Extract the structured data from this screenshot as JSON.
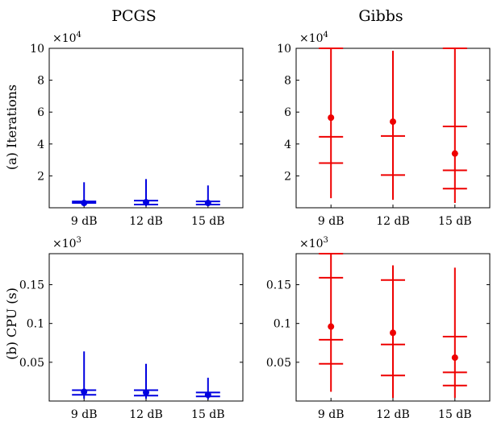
{
  "column_titles": [
    "PCGS",
    "Gibbs"
  ],
  "row_labels": [
    "(a) Iterations",
    "(b) CPU (s)"
  ],
  "colors": {
    "PCGS": "#0000e0",
    "Gibbs": "#ee0000",
    "axis": "#000000"
  },
  "chart_data": [
    {
      "type": "errorbar",
      "title": "PCGS",
      "ylabel": "(a) Iterations",
      "ymultiplier": {
        "base": "×10",
        "exp": "4"
      },
      "ylim": [
        0,
        10
      ],
      "yticks": [
        2,
        4,
        6,
        8,
        10
      ],
      "ytick_labels": [
        "2",
        "4",
        "6",
        "8",
        "10"
      ],
      "categories": [
        "9 dB",
        "12 dB",
        "15 dB"
      ],
      "series": [
        {
          "values": [
            {
              "lo": 0.1,
              "hi": 1.6,
              "mean": 0.3,
              "q1": 0.3,
              "q2": 0.4
            },
            {
              "lo": 0.1,
              "hi": 1.8,
              "mean": 0.35,
              "q1": 0.2,
              "q2": 0.45
            },
            {
              "lo": 0.1,
              "hi": 1.4,
              "mean": 0.3,
              "q1": 0.2,
              "q2": 0.4
            }
          ]
        }
      ]
    },
    {
      "type": "errorbar",
      "title": "Gibbs",
      "ylabel": "",
      "ymultiplier": {
        "base": "×10",
        "exp": "4"
      },
      "ylim": [
        0,
        10
      ],
      "yticks": [
        2,
        4,
        6,
        8,
        10
      ],
      "ytick_labels": [
        "2",
        "4",
        "6",
        "8",
        "10"
      ],
      "categories": [
        "9 dB",
        "12 dB",
        "15 dB"
      ],
      "series": [
        {
          "values": [
            {
              "lo": 0.6,
              "hi": 10.0,
              "mean": 5.65,
              "q1": 2.8,
              "q2": 4.45
            },
            {
              "lo": 0.5,
              "hi": 9.85,
              "mean": 5.4,
              "q1": 2.05,
              "q2": 4.5
            },
            {
              "lo": 0.3,
              "hi": 10.0,
              "mean": 3.4,
              "q1": 1.2,
              "q2": 2.35,
              "q3": 5.1
            }
          ]
        }
      ]
    },
    {
      "type": "errorbar",
      "title": "",
      "ylabel": "(b) CPU (s)",
      "ymultiplier": {
        "base": "×10",
        "exp": "3"
      },
      "ylim": [
        0,
        0.19
      ],
      "yticks": [
        0.05,
        0.1,
        0.15
      ],
      "ytick_labels": [
        "0.05",
        "0.1",
        "0.15"
      ],
      "categories": [
        "9 dB",
        "12 dB",
        "15 dB"
      ],
      "series": [
        {
          "values": [
            {
              "lo": 0.003,
              "hi": 0.064,
              "mean": 0.012,
              "q1": 0.008,
              "q2": 0.014
            },
            {
              "lo": 0.003,
              "hi": 0.048,
              "mean": 0.011,
              "q1": 0.007,
              "q2": 0.014
            },
            {
              "lo": 0.002,
              "hi": 0.03,
              "mean": 0.008,
              "q1": 0.006,
              "q2": 0.011
            }
          ]
        }
      ]
    },
    {
      "type": "errorbar",
      "title": "",
      "ylabel": "",
      "ymultiplier": {
        "base": "×10",
        "exp": "3"
      },
      "ylim": [
        0,
        0.19
      ],
      "yticks": [
        0.05,
        0.1,
        0.15
      ],
      "ytick_labels": [
        "0.05",
        "0.1",
        "0.15"
      ],
      "categories": [
        "9 dB",
        "12 dB",
        "15 dB"
      ],
      "series": [
        {
          "values": [
            {
              "lo": 0.012,
              "hi": 0.19,
              "mean": 0.096,
              "q1": 0.048,
              "q2": 0.079,
              "q3": 0.159
            },
            {
              "lo": 0.004,
              "hi": 0.175,
              "mean": 0.088,
              "q1": 0.033,
              "q2": 0.073,
              "q3": 0.156
            },
            {
              "lo": 0.004,
              "hi": 0.172,
              "mean": 0.056,
              "q1": 0.02,
              "q2": 0.037,
              "q3": 0.083
            }
          ]
        }
      ]
    }
  ]
}
